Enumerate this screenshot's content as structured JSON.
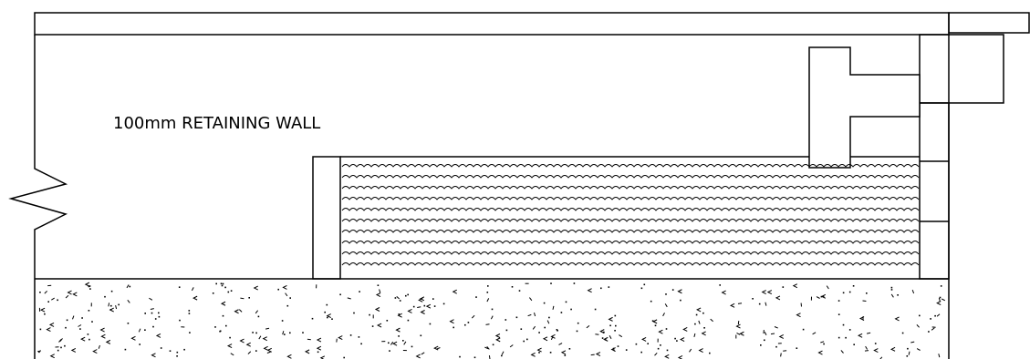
{
  "drawing": {
    "annotation": "100mm RETAINING WALL",
    "colors": {
      "line": "#000000",
      "background": "#ffffff"
    }
  }
}
